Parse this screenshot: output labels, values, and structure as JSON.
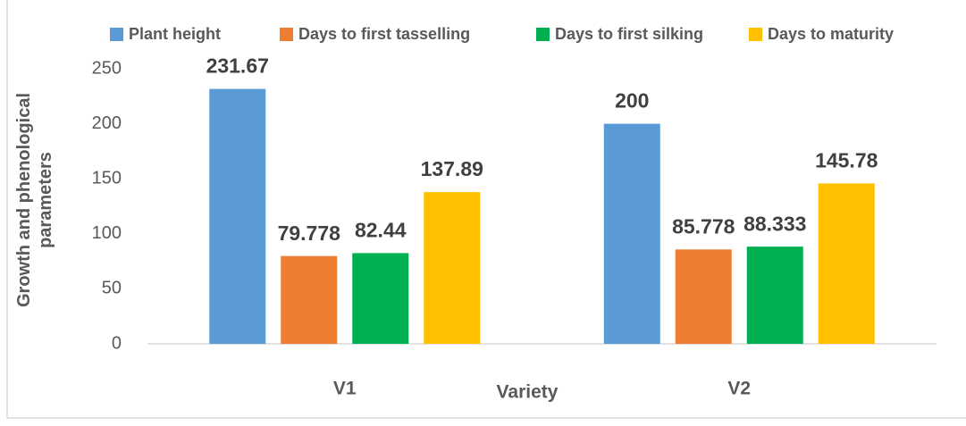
{
  "chart_data": {
    "type": "bar",
    "x_label": "Variety",
    "y_label": "Growth and phenological parameters",
    "categories": [
      "V1",
      "V2"
    ],
    "series": [
      {
        "name": "Plant height",
        "color": "#5b9bd5",
        "values": [
          231.67,
          200
        ]
      },
      {
        "name": "Days to first tasselling",
        "color": "#ed7d31",
        "values": [
          79.778,
          85.778
        ]
      },
      {
        "name": "Days to first silking",
        "color": "#00b050",
        "values": [
          82.44,
          88.333
        ]
      },
      {
        "name": "Days to maturity",
        "color": "#ffc000",
        "values": [
          137.89,
          145.78
        ]
      }
    ],
    "ylim": [
      0,
      250
    ],
    "yticks": [
      0,
      50,
      100,
      150,
      200,
      250
    ],
    "grid": false,
    "legend": "top"
  }
}
